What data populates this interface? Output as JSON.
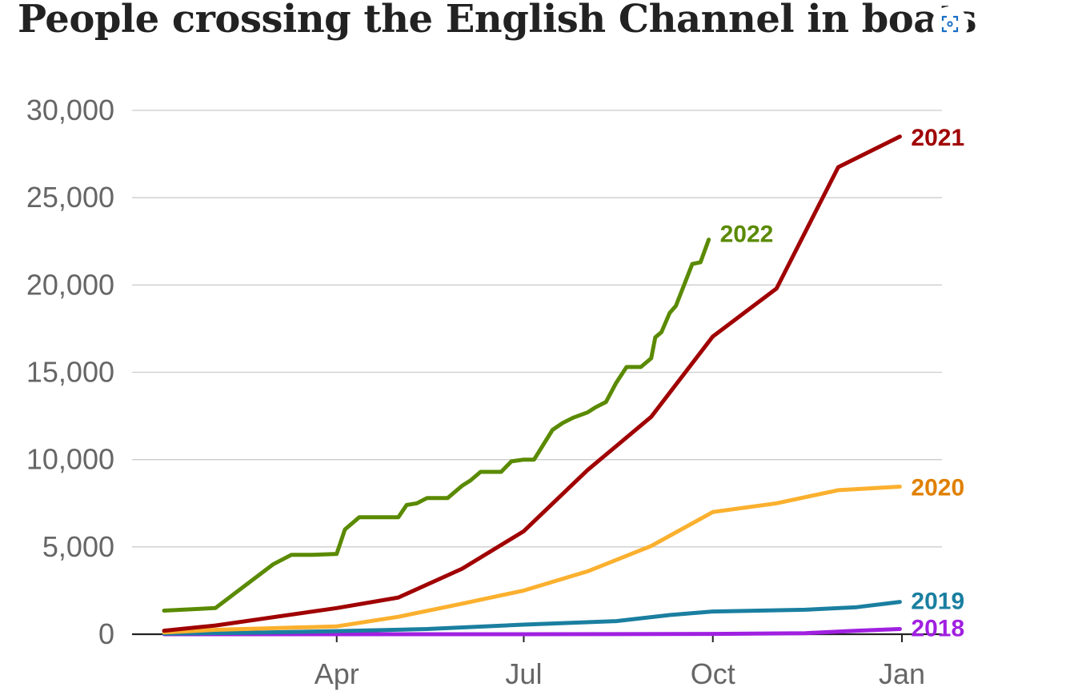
{
  "page": {
    "title": "People crossing the English Channel in boats"
  },
  "icons": {
    "expand": "expand-icon"
  },
  "chart_data": {
    "type": "line",
    "title": "People crossing the English Channel in boats",
    "xlabel": "",
    "ylabel": "",
    "ylim": [
      0,
      30000
    ],
    "yticks": [
      0,
      5000,
      10000,
      15000,
      20000,
      25000,
      30000
    ],
    "ytick_labels": [
      "0",
      "5,000",
      "10,000",
      "15,000",
      "20,000",
      "25,000",
      "30,000"
    ],
    "xlim": [
      "Jan 7",
      "Jan 20 (following year)"
    ],
    "xticks": [
      "Apr 1",
      "Jul 1",
      "Oct 1",
      "Jan 1 (following year)"
    ],
    "xtick_labels": [
      "Apr",
      "Jul",
      "Oct",
      "Jan"
    ],
    "grid": true,
    "legend": "inline labels at line ends",
    "series": [
      {
        "name": "2018",
        "color": "#a020e0",
        "label_color": "#a020e0",
        "points": [
          [
            "Jan 7",
            0
          ],
          [
            "Apr 1",
            0
          ],
          [
            "Jul 1",
            0
          ],
          [
            "Oct 1",
            20
          ],
          [
            "Nov 15",
            60
          ],
          [
            "Dec 10",
            200
          ],
          [
            "Dec 31",
            300
          ]
        ]
      },
      {
        "name": "2019",
        "color": "#1a7fa0",
        "label_color": "#1a7fa0",
        "points": [
          [
            "Jan 7",
            30
          ],
          [
            "Feb 15",
            80
          ],
          [
            "Apr 1",
            180
          ],
          [
            "May 15",
            300
          ],
          [
            "Jul 1",
            550
          ],
          [
            "Aug 15",
            750
          ],
          [
            "Sep 10",
            1100
          ],
          [
            "Oct 1",
            1300
          ],
          [
            "Nov 15",
            1400
          ],
          [
            "Dec 10",
            1550
          ],
          [
            "Dec 31",
            1850
          ]
        ]
      },
      {
        "name": "2020",
        "color": "#fbb02e",
        "label_color": "#e08000",
        "points": [
          [
            "Jan 7",
            100
          ],
          [
            "Feb 1",
            250
          ],
          [
            "Apr 1",
            450
          ],
          [
            "May 1",
            1000
          ],
          [
            "Jun 1",
            1750
          ],
          [
            "Jul 1",
            2500
          ],
          [
            "Aug 1",
            3600
          ],
          [
            "Sep 1",
            5050
          ],
          [
            "Oct 1",
            7000
          ],
          [
            "Nov 1",
            7500
          ],
          [
            "Dec 1",
            8250
          ],
          [
            "Dec 31",
            8450
          ]
        ]
      },
      {
        "name": "2021",
        "color": "#a00000",
        "label_color": "#a00000",
        "points": [
          [
            "Jan 7",
            200
          ],
          [
            "Feb 1",
            500
          ],
          [
            "Apr 1",
            1500
          ],
          [
            "May 1",
            2100
          ],
          [
            "Jun 1",
            3750
          ],
          [
            "Jul 1",
            5900
          ],
          [
            "Aug 1",
            9400
          ],
          [
            "Sep 1",
            12450
          ],
          [
            "Oct 1",
            17050
          ],
          [
            "Nov 1",
            19800
          ],
          [
            "Dec 1",
            26750
          ],
          [
            "Dec 31",
            28500
          ]
        ]
      },
      {
        "name": "2022",
        "color": "#5a8a00",
        "label_color": "#5a8a00",
        "points": [
          [
            "Jan 7",
            1350
          ],
          [
            "Feb 1",
            1500
          ],
          [
            "Mar 1",
            4000
          ],
          [
            "Mar 10",
            4550
          ],
          [
            "Mar 20",
            4550
          ],
          [
            "Apr 1",
            4600
          ],
          [
            "Apr 5",
            6000
          ],
          [
            "Apr 12",
            6700
          ],
          [
            "Apr 20",
            6700
          ],
          [
            "May 1",
            6700
          ],
          [
            "May 5",
            7400
          ],
          [
            "May 10",
            7500
          ],
          [
            "May 15",
            7800
          ],
          [
            "May 25",
            7800
          ],
          [
            "Jun 1",
            8500
          ],
          [
            "Jun 5",
            8800
          ],
          [
            "Jun 10",
            9300
          ],
          [
            "Jun 20",
            9300
          ],
          [
            "Jun 25",
            9900
          ],
          [
            "Jul 1",
            10000
          ],
          [
            "Jul 6",
            10000
          ],
          [
            "Jul 15",
            11700
          ],
          [
            "Jul 20",
            12100
          ],
          [
            "Jul 25",
            12400
          ],
          [
            "Aug 1",
            12700
          ],
          [
            "Aug 5",
            13000
          ],
          [
            "Aug 10",
            13300
          ],
          [
            "Aug 15",
            14400
          ],
          [
            "Aug 20",
            15300
          ],
          [
            "Aug 27",
            15300
          ],
          [
            "Sep 1",
            15800
          ],
          [
            "Sep 3",
            17000
          ],
          [
            "Sep 6",
            17300
          ],
          [
            "Sep 10",
            18400
          ],
          [
            "Sep 13",
            18800
          ],
          [
            "Sep 17",
            20000
          ],
          [
            "Sep 21",
            21200
          ],
          [
            "Sep 25",
            21300
          ],
          [
            "Sep 29",
            22600
          ]
        ]
      }
    ]
  }
}
